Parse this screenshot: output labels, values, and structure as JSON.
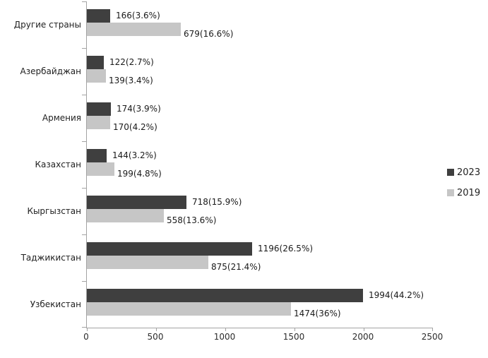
{
  "chart_data": {
    "type": "bar",
    "orientation": "horizontal",
    "grid": false,
    "legend_position": "right",
    "categories": [
      "Другие страны",
      "Азербайджан",
      "Армения",
      "Казахстан",
      "Кыргызстан",
      "Таджикистан",
      "Узбекистан"
    ],
    "series": [
      {
        "name": "2023",
        "color": "#3f3f3f",
        "values": [
          166,
          122,
          174,
          144,
          718,
          1196,
          1994
        ],
        "data_labels": [
          "166(3.6%)",
          "122(2.7%)",
          "174(3.9%)",
          "144(3.2%)",
          "718(15.9%)",
          "1196(26.5%)",
          "1994(44.2%)"
        ]
      },
      {
        "name": "2019",
        "color": "#c6c6c6",
        "values": [
          679,
          139,
          170,
          199,
          558,
          875,
          1474
        ],
        "data_labels": [
          "679(16.6%)",
          "139(3.4%)",
          "170(4.2%)",
          "199(4.8%)",
          "558(13.6%)",
          "875(21.4%)",
          "1474(36%)"
        ]
      }
    ],
    "x_axis": {
      "min": 0,
      "max": 2500,
      "tick_labels": [
        "0",
        "500",
        "1000",
        "1500",
        "2000",
        "2500"
      ],
      "tick_values": [
        0,
        500,
        1000,
        1500,
        2000,
        2500
      ]
    },
    "legend": [
      {
        "label": "2023",
        "color": "#3f3f3f"
      },
      {
        "label": "2019",
        "color": "#c6c6c6"
      }
    ]
  }
}
